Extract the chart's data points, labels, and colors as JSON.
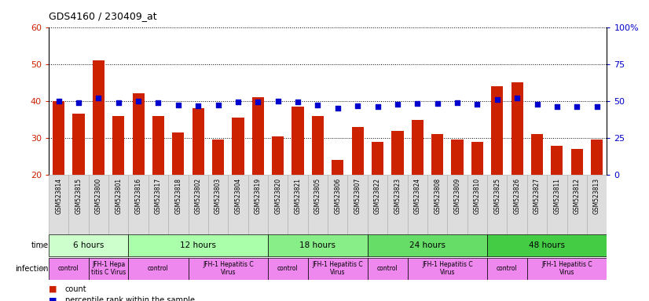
{
  "title": "GDS4160 / 230409_at",
  "samples": [
    "GSM523814",
    "GSM523815",
    "GSM523800",
    "GSM523801",
    "GSM523816",
    "GSM523817",
    "GSM523818",
    "GSM523802",
    "GSM523803",
    "GSM523804",
    "GSM523819",
    "GSM523820",
    "GSM523821",
    "GSM523805",
    "GSM523806",
    "GSM523807",
    "GSM523822",
    "GSM523823",
    "GSM523824",
    "GSM523808",
    "GSM523809",
    "GSM523810",
    "GSM523825",
    "GSM523826",
    "GSM523827",
    "GSM523811",
    "GSM523812",
    "GSM523813"
  ],
  "counts": [
    40,
    36.5,
    51,
    36,
    42,
    36,
    31.5,
    38,
    29.5,
    35.5,
    41,
    30.5,
    38.5,
    36,
    24,
    33,
    29,
    32,
    35,
    31,
    29.5,
    29,
    44,
    45,
    31,
    28,
    27,
    29.5
  ],
  "percentiles": [
    50,
    49,
    52,
    49,
    50,
    49,
    47.5,
    47,
    47.5,
    49.5,
    49.5,
    50,
    49.5,
    47.5,
    45,
    47,
    46.5,
    48,
    48.5,
    48.5,
    49,
    48,
    51,
    52,
    48,
    46.5,
    46,
    46.5
  ],
  "ylim_left": [
    20,
    60
  ],
  "ylim_right": [
    0,
    100
  ],
  "yticks_left": [
    20,
    30,
    40,
    50,
    60
  ],
  "yticks_right": [
    0,
    25,
    50,
    75,
    100
  ],
  "bar_color": "#cc2200",
  "dot_color": "#0000cc",
  "time_groups": [
    {
      "label": "6 hours",
      "start": 0,
      "end": 4,
      "color": "#ccffcc"
    },
    {
      "label": "12 hours",
      "start": 4,
      "end": 11,
      "color": "#aaffaa"
    },
    {
      "label": "18 hours",
      "start": 11,
      "end": 16,
      "color": "#88ee88"
    },
    {
      "label": "24 hours",
      "start": 16,
      "end": 22,
      "color": "#66dd66"
    },
    {
      "label": "48 hours",
      "start": 22,
      "end": 28,
      "color": "#44cc44"
    }
  ],
  "infection_groups": [
    {
      "label": "control",
      "start": 0,
      "end": 2
    },
    {
      "label": "JFH-1 Hepa\ntitis C Virus",
      "start": 2,
      "end": 4
    },
    {
      "label": "control",
      "start": 4,
      "end": 7
    },
    {
      "label": "JFH-1 Hepatitis C\nVirus",
      "start": 7,
      "end": 11
    },
    {
      "label": "control",
      "start": 11,
      "end": 13
    },
    {
      "label": "JFH-1 Hepatitis C\nVirus",
      "start": 13,
      "end": 16
    },
    {
      "label": "control",
      "start": 16,
      "end": 18
    },
    {
      "label": "JFH-1 Hepatitis C\nVirus",
      "start": 18,
      "end": 22
    },
    {
      "label": "control",
      "start": 22,
      "end": 24
    },
    {
      "label": "JFH-1 Hepatitis C\nVirus",
      "start": 24,
      "end": 28
    }
  ],
  "xticklabel_bg": "#dddddd",
  "bg_color": "#ffffff",
  "inf_color": "#ee88ee",
  "label_time_color": "#aaaaaa",
  "label_inf_color": "#aaaaaa"
}
